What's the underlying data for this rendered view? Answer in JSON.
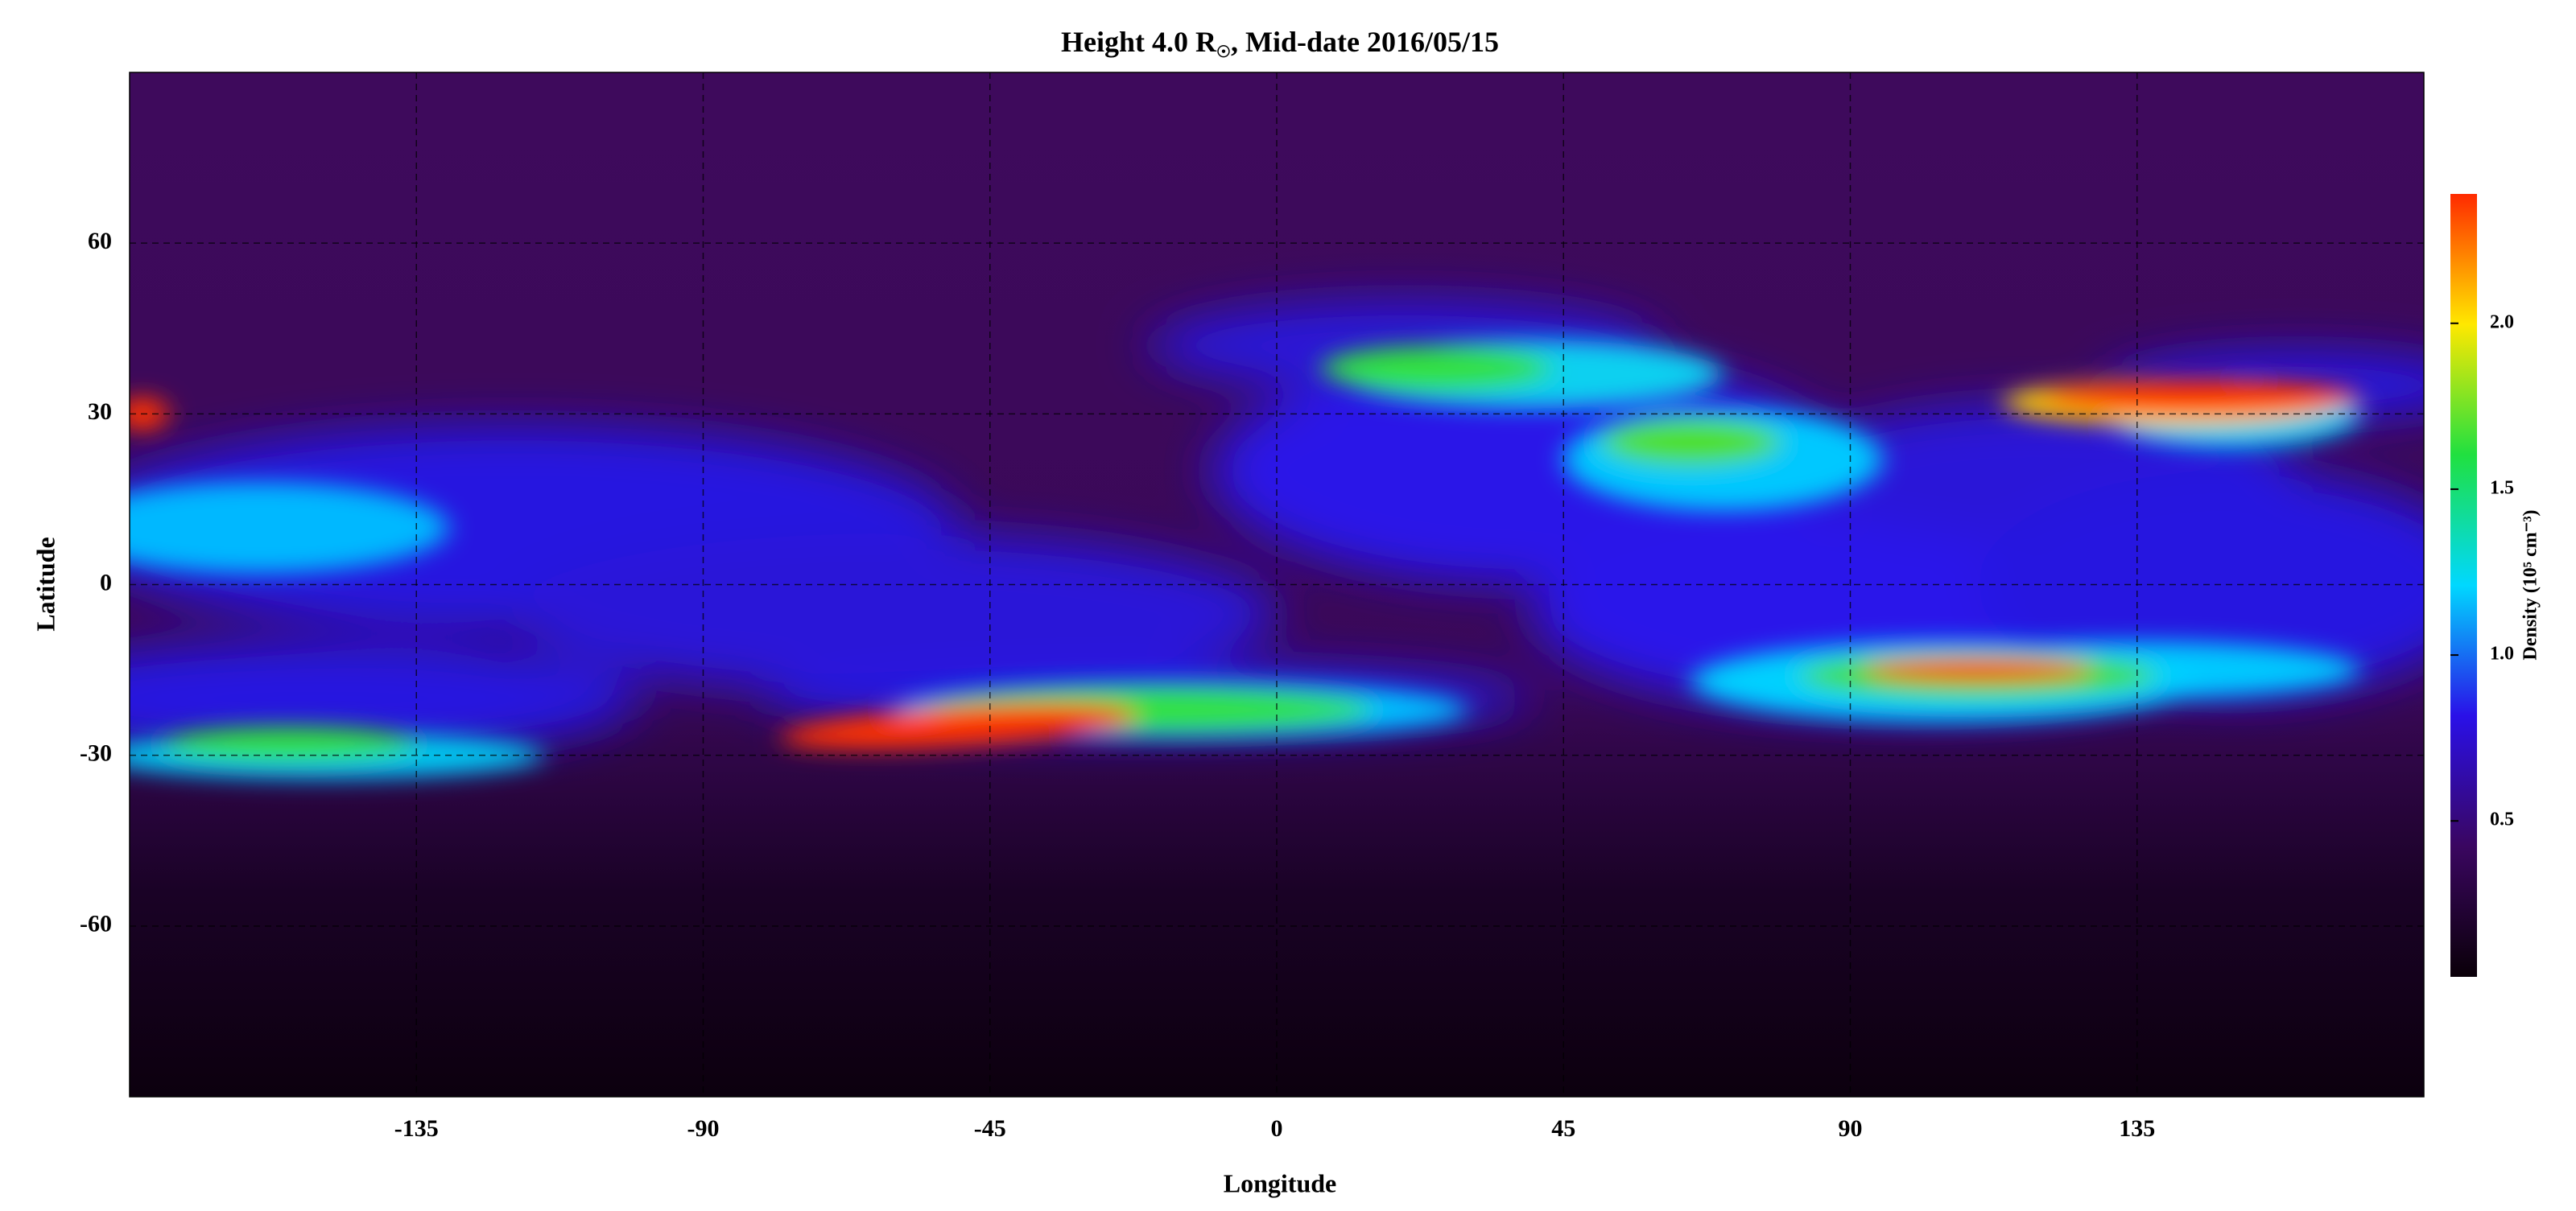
{
  "chart_data": {
    "type": "heatmap",
    "title": {
      "main": "Height 4.0 R",
      "sub": "☉",
      "rest": ", Mid-date 2016/05/15"
    },
    "x_label": "Longitude",
    "y_label": "Latitude",
    "xlim": [
      -180,
      180
    ],
    "xticks": [
      -135,
      -90,
      -45,
      0,
      45,
      90,
      135
    ],
    "ylim": [
      -90,
      90
    ],
    "yticks": [
      -60,
      -30,
      0,
      30,
      60
    ],
    "grid": true,
    "colorbar": {
      "label": "Density (10⁵ cm⁻³)",
      "lim": [
        0.03,
        2.39
      ],
      "ticks": [
        0.5,
        {
          "value": 1.0,
          "label": "1.0"
        },
        1.5,
        {
          "value": 2.0,
          "label": "2.0"
        }
      ],
      "colors": [
        "#0a0008",
        "#3a0660",
        "#2a10e8",
        "#00d8ff",
        "#20e040",
        "#ffe800",
        "#ff2a00"
      ]
    }
  }
}
